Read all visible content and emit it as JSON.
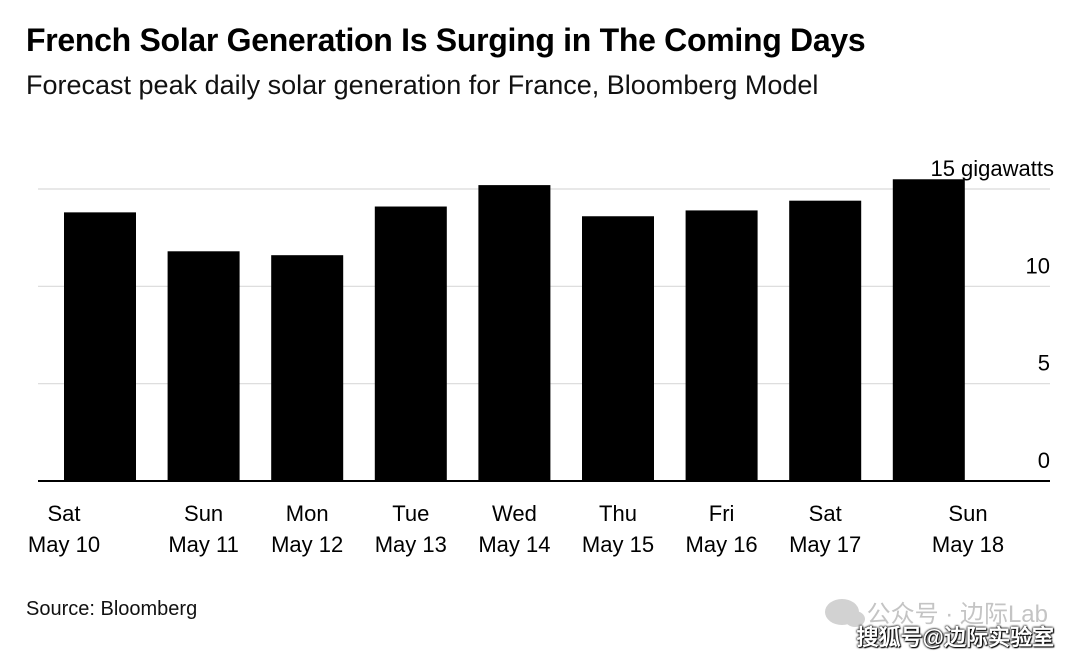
{
  "chart_data": {
    "type": "bar",
    "title": "French Solar Generation Is Surging in The Coming Days",
    "subtitle": "Forecast peak daily solar generation for France, Bloomberg Model",
    "unit_label": "15 gigawatts",
    "y_tick_labels": [
      "0",
      "5",
      "10"
    ],
    "y_tick_values": [
      0,
      5,
      10,
      15
    ],
    "ylim": [
      0,
      15.5
    ],
    "categories": [
      {
        "day": "Sat",
        "date": "May 10"
      },
      {
        "day": "Sun",
        "date": "May 11"
      },
      {
        "day": "Mon",
        "date": "May 12"
      },
      {
        "day": "Tue",
        "date": "May 13"
      },
      {
        "day": "Wed",
        "date": "May 14"
      },
      {
        "day": "Thu",
        "date": "May 15"
      },
      {
        "day": "Fri",
        "date": "May 16"
      },
      {
        "day": "Sat",
        "date": "May 17"
      },
      {
        "day": "Sun",
        "date": "May 18"
      }
    ],
    "values": [
      13.8,
      11.8,
      11.6,
      14.1,
      15.2,
      13.6,
      13.9,
      14.4,
      15.5
    ],
    "bar_color": "#000000",
    "grid": true,
    "y_axis_position": "right"
  },
  "source": "Source: Bloomberg",
  "watermark_top": "公众号 · 边际Lab",
  "watermark_bottom": "搜狐号@边际实验室"
}
